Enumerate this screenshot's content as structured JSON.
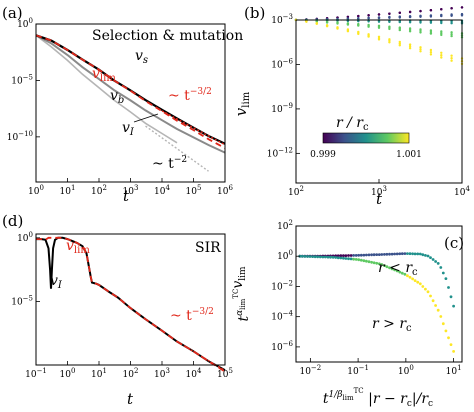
{
  "colors": {
    "red": "#e0271a",
    "black": "#000000",
    "dark_gray": "#555555",
    "mid_gray": "#8a8a8a",
    "light_gray": "#b5b5b5",
    "colormap": [
      "#440154",
      "#3b528b",
      "#21918c",
      "#5ec962",
      "#fde725"
    ]
  },
  "chart_data": [
    {
      "panel": "(a)",
      "type": "line",
      "title": "Selection & mutation",
      "xlabel": "t",
      "xscale": "log",
      "yscale": "log",
      "xlim": [
        1,
        1000000
      ],
      "ylim": [
        1e-14,
        1
      ],
      "x_ticks": [
        "10^0",
        "10^1",
        "10^2",
        "10^3",
        "10^4",
        "10^5",
        "10^6"
      ],
      "y_ticks": [
        "10^-10",
        "10^-5",
        "10^0"
      ],
      "series": [
        {
          "name": "v_s",
          "color": "#555555",
          "x": [
            1,
            3,
            10,
            30,
            100,
            300,
            1000,
            3000,
            10000,
            30000,
            100000,
            300000,
            1000000
          ],
          "y": [
            0.1,
            0.035,
            0.005,
            0.0007,
            9e-05,
            1e-05,
            1.3e-06,
            1.8e-07,
            2.5e-08,
            4.2e-09,
            6.5e-10,
            1.2e-10,
            2.5e-11
          ]
        },
        {
          "name": "v_lim",
          "color": "#e0271a",
          "dashed": true,
          "x": [
            1,
            3,
            10,
            30,
            100,
            300,
            1000,
            3000,
            10000,
            30000,
            100000,
            300000,
            1000000
          ],
          "y": [
            0.1,
            0.035,
            0.005,
            0.0007,
            9e-05,
            1e-05,
            1.2e-06,
            1.5e-07,
            1.9e-08,
            2.7e-09,
            4e-10,
            6.2e-11,
            1e-11
          ]
        },
        {
          "name": "v_b",
          "color": "#b5b5b5",
          "x": [
            1,
            3,
            10,
            30,
            100,
            300,
            1000,
            3000,
            10000,
            30000
          ],
          "y": [
            0.1,
            0.01,
            0.0006,
            3.5e-05,
            2.2e-06,
            1.8e-07,
            1.6e-08,
            1.6e-09,
            2e-10,
            3e-11
          ]
        },
        {
          "name": "v_I",
          "color": "#8a8a8a",
          "x": [
            1,
            3,
            10,
            30,
            100,
            300,
            1000,
            3000,
            10000,
            30000,
            100000,
            300000,
            1000000
          ],
          "y": [
            0.1,
            0.02,
            0.0018,
            0.00015,
            1.3e-05,
            1.4e-06,
            1.7e-07,
            2.2e-08,
            3e-09,
            5e-10,
            9e-11,
            1.9e-11,
            4e-12
          ]
        }
      ],
      "annotations": [
        "v_lim",
        "v_s",
        "v_b",
        "v_I",
        "~ t^-3/2",
        "~ t^-2"
      ]
    },
    {
      "panel": "(b)",
      "type": "scatter",
      "xlabel": "t",
      "ylabel": "v_lim",
      "xscale": "log",
      "yscale": "log",
      "xlim": [
        100,
        10000
      ],
      "ylim": [
        1e-14,
        0.001
      ],
      "x_ticks": [
        "10^2",
        "10^3",
        "10^4"
      ],
      "y_ticks": [
        "10^-3",
        "10^-6",
        "10^-9",
        "10^-12"
      ],
      "colorbar": {
        "label": "r / r_c",
        "range": [
          0.999,
          1.001
        ],
        "ticks": [
          "0.999",
          "1.001"
        ]
      },
      "series": [
        {
          "name": "r/r_c = 0.999",
          "exponent_min": -2.15
        },
        {
          "name": "r/r_c = 0.9995",
          "exponent_min": -2.6
        },
        {
          "name": "r/r_c = 1.0",
          "exponent_min": -3.05
        },
        {
          "name": "r/r_c = 1.0005",
          "exponent_min": -3.9
        },
        {
          "name": "r/r_c = 1.001",
          "exponent_min": -5.6
        }
      ],
      "notes": "v_lim starts near 10^-3 at t = 100 for all r; the spread grows with t."
    },
    {
      "panel": "(d)",
      "type": "line",
      "title": "SIR",
      "xlabel": "t",
      "xscale": "log",
      "yscale": "log",
      "xlim": [
        0.1,
        100000
      ],
      "ylim": [
        1e-10,
        2
      ],
      "x_ticks": [
        "10^-1",
        "10^0",
        "10^1",
        "10^2",
        "10^3",
        "10^4",
        "10^5"
      ],
      "y_ticks": [
        "10^0",
        "10^-5"
      ],
      "series": [
        {
          "name": "v_I",
          "color": "#000000",
          "x": [
            0.1,
            0.15,
            0.2,
            0.25,
            0.28,
            0.3,
            0.32,
            0.35,
            0.4,
            0.5,
            0.7,
            1,
            2,
            3,
            4,
            5,
            5.5,
            6,
            8,
            10,
            20,
            40,
            100,
            300,
            1000,
            3000,
            10000,
            30000,
            100000
          ],
          "y": [
            0.8,
            0.8,
            0.7,
            0.15,
            0.003,
            0.0001,
            0.003,
            0.15,
            0.7,
            1,
            1,
            0.8,
            0.4,
            0.22,
            0.06,
            0.003,
            0.0008,
            0.0003,
            0.00025,
            0.0002,
            6e-05,
            2e-05,
            3e-06,
            4e-07,
            5e-08,
            7e-09,
            1.2e-09,
            2e-10,
            4e-11
          ]
        },
        {
          "name": "v_lim",
          "color": "#e0271a",
          "dashed": true,
          "x": [
            0.1,
            0.15,
            0.2,
            0.25,
            0.3,
            0.35,
            0.4,
            0.5,
            0.7,
            1,
            2,
            3,
            4,
            5,
            5.5,
            6,
            8,
            10,
            20,
            40,
            100,
            300,
            1000,
            3000,
            10000,
            30000,
            100000
          ],
          "y": [
            0.8,
            0.8,
            0.7,
            1,
            1,
            1,
            1,
            1,
            1,
            0.8,
            0.4,
            0.22,
            0.06,
            0.003,
            0.0008,
            0.0003,
            0.00025,
            0.0002,
            6e-05,
            2e-05,
            3e-06,
            4e-07,
            5e-08,
            7e-09,
            1.2e-09,
            2e-10,
            3e-11
          ]
        }
      ],
      "annotations": [
        "v_lim",
        "v_I",
        "~ t^-3/2"
      ]
    },
    {
      "panel": "(c)",
      "type": "scatter",
      "xlabel": "t^(1/β_lim^TC) |r − r_c| / r_c",
      "ylabel": "t^(α_lim^TC) v_lim",
      "xscale": "log",
      "yscale": "log",
      "xlim": [
        0.005,
        15
      ],
      "ylim": [
        1e-07,
        100
      ],
      "x_ticks": [
        "10^-2",
        "10^-1",
        "10^0",
        "10^1"
      ],
      "y_ticks": [
        "10^2",
        "10^0",
        "10^-2",
        "10^-4",
        "10^-6"
      ],
      "series": [
        {
          "name": "r < r_c",
          "x": [
            0.006,
            0.01,
            0.03,
            0.1,
            0.3,
            1,
            2,
            3,
            5,
            7,
            10
          ],
          "y": [
            1,
            1,
            1.05,
            1.15,
            1.3,
            1.5,
            1.4,
            1.0,
            0.3,
            0.03,
            0.0005
          ]
        },
        {
          "name": "r > r_c",
          "x": [
            0.006,
            0.01,
            0.03,
            0.1,
            0.3,
            1,
            2,
            3,
            5,
            7,
            10
          ],
          "y": [
            1,
            0.95,
            0.85,
            0.6,
            0.3,
            0.06,
            0.015,
            0.004,
            0.0002,
            1e-05,
            5e-07
          ]
        }
      ],
      "annotations": [
        "r < r_c",
        "r > r_c"
      ]
    }
  ],
  "labels": {
    "panel_a": "(a)",
    "panel_b": "(b)",
    "panel_c": "(c)",
    "panel_d": "(d)",
    "a_title": "Selection & mutation",
    "a_vlim": "v",
    "a_vlim_sub": "lim",
    "a_vs": "v",
    "a_vs_sub": "s",
    "a_vb": "v",
    "a_vb_sub": "b",
    "a_vI": "v",
    "a_vI_sub": "I",
    "a_pow32": "~ t",
    "a_pow32_sup": "−3/2",
    "a_pow2": "~ t",
    "a_pow2_sup": "−2",
    "a_xlabel": "t",
    "b_ylabel": "v",
    "b_ylabel_sub": "lim",
    "b_xlabel": "t",
    "cbar_label": "r / r",
    "cbar_label_sub": "c",
    "cbar_lo": "0.999",
    "cbar_hi": "1.001",
    "d_title": "SIR",
    "d_vlim": "v",
    "d_vlim_sub": "lim",
    "d_vI": "v",
    "d_vI_sub": "I",
    "d_pow": "~ t",
    "d_pow_sup": "−3/2",
    "d_xlabel": "t",
    "c_rlt": "r < r",
    "c_rlt_sub": "c",
    "c_rgt": "r > r",
    "c_rgt_sub": "c",
    "c_ylabel": "t",
    "c_ylabel_sup": "α",
    "c_ylabel_supsub": "lim",
    "c_ylabel_supsup": "TC",
    "c_ylabel_tail": "v",
    "c_ylabel_tailsub": "lim",
    "c_xlabel_t": "t",
    "c_xlabel_sup": "1/β",
    "c_xlabel_supsub": "lim",
    "c_xlabel_supsup": "TC",
    "c_xlabel_tail": " |r − r",
    "c_xlabel_tailsub": "c",
    "c_xlabel_end": "|/r",
    "c_xlabel_endsub": "c",
    "a_xticks": [
      {
        "b": "10",
        "e": "0"
      },
      {
        "b": "10",
        "e": "1"
      },
      {
        "b": "10",
        "e": "2"
      },
      {
        "b": "10",
        "e": "3"
      },
      {
        "b": "10",
        "e": "4"
      },
      {
        "b": "10",
        "e": "5"
      },
      {
        "b": "10",
        "e": "6"
      }
    ],
    "a_yticks": [
      {
        "b": "10",
        "e": "0"
      },
      {
        "b": "10",
        "e": "−5"
      },
      {
        "b": "10",
        "e": "−10"
      }
    ],
    "b_xticks": [
      {
        "b": "10",
        "e": "2"
      },
      {
        "b": "10",
        "e": "3"
      },
      {
        "b": "10",
        "e": "4"
      }
    ],
    "b_yticks": [
      {
        "b": "10",
        "e": "−3"
      },
      {
        "b": "10",
        "e": "−6"
      },
      {
        "b": "10",
        "e": "−9"
      },
      {
        "b": "10",
        "e": "−12"
      }
    ],
    "d_xticks": [
      {
        "b": "10",
        "e": "−1"
      },
      {
        "b": "10",
        "e": "0"
      },
      {
        "b": "10",
        "e": "1"
      },
      {
        "b": "10",
        "e": "2"
      },
      {
        "b": "10",
        "e": "3"
      },
      {
        "b": "10",
        "e": "4"
      },
      {
        "b": "10",
        "e": "5"
      }
    ],
    "d_yticks": [
      {
        "b": "10",
        "e": "0"
      },
      {
        "b": "10",
        "e": "−5"
      }
    ],
    "c_xticks": [
      {
        "b": "10",
        "e": "−2"
      },
      {
        "b": "10",
        "e": "−1"
      },
      {
        "b": "10",
        "e": "0"
      },
      {
        "b": "10",
        "e": "1"
      }
    ],
    "c_yticks": [
      {
        "b": "10",
        "e": "2"
      },
      {
        "b": "10",
        "e": "0"
      },
      {
        "b": "10",
        "e": "−2"
      },
      {
        "b": "10",
        "e": "−4"
      },
      {
        "b": "10",
        "e": "−6"
      }
    ]
  }
}
